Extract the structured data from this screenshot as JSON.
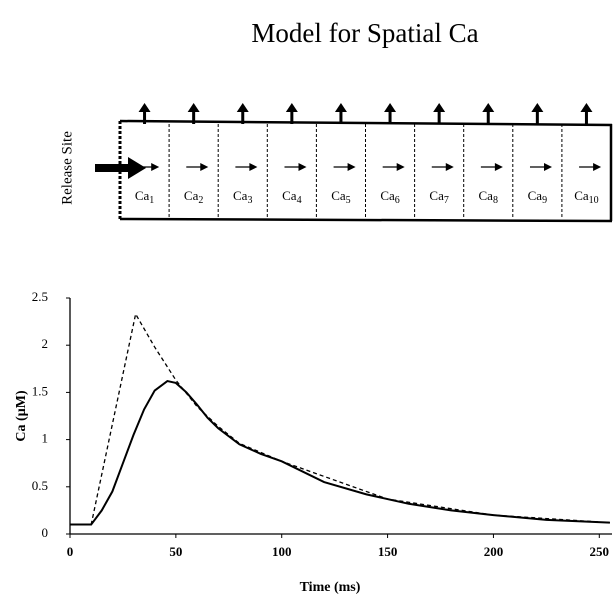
{
  "title": "Model for Spatial Ca",
  "diagram": {
    "side_label": "Release Site",
    "compartments": [
      {
        "base": "Ca",
        "sub": "1"
      },
      {
        "base": "Ca",
        "sub": "2"
      },
      {
        "base": "Ca",
        "sub": "3"
      },
      {
        "base": "Ca",
        "sub": "4"
      },
      {
        "base": "Ca",
        "sub": "5"
      },
      {
        "base": "Ca",
        "sub": "6"
      },
      {
        "base": "Ca",
        "sub": "7"
      },
      {
        "base": "Ca",
        "sub": "8"
      },
      {
        "base": "Ca",
        "sub": "9"
      },
      {
        "base": "Ca",
        "sub": "10"
      }
    ]
  },
  "chart_data": {
    "type": "line",
    "x_label": "Time (ms)",
    "y_label": "Ca (µM)",
    "xlim": [
      0,
      256
    ],
    "xticks": [
      0,
      50,
      100,
      150,
      200,
      250
    ],
    "ylim": [
      0,
      2.5
    ],
    "yticks": [
      0,
      0.5,
      1,
      1.5,
      2,
      2.5
    ],
    "series": [
      {
        "color": "#000000",
        "dashed": false,
        "x": [
          0,
          10,
          15,
          20,
          25,
          30,
          35,
          40,
          46,
          50,
          55,
          60,
          65,
          70,
          80,
          90,
          100,
          120,
          140,
          160,
          180,
          200,
          225,
          255
        ],
        "values": [
          0.1,
          0.1,
          0.25,
          0.45,
          0.75,
          1.05,
          1.32,
          1.52,
          1.62,
          1.6,
          1.5,
          1.37,
          1.23,
          1.12,
          0.95,
          0.85,
          0.77,
          0.55,
          0.42,
          0.32,
          0.25,
          0.2,
          0.15,
          0.12
        ]
      },
      {
        "color": "#000000",
        "dashed": true,
        "x": [
          0,
          10,
          31,
          40,
          50,
          60,
          70,
          80,
          100,
          150,
          200,
          255
        ],
        "values": [
          0.1,
          0.1,
          2.33,
          1.98,
          1.63,
          1.35,
          1.14,
          0.96,
          0.77,
          0.37,
          0.2,
          0.12
        ]
      }
    ]
  }
}
